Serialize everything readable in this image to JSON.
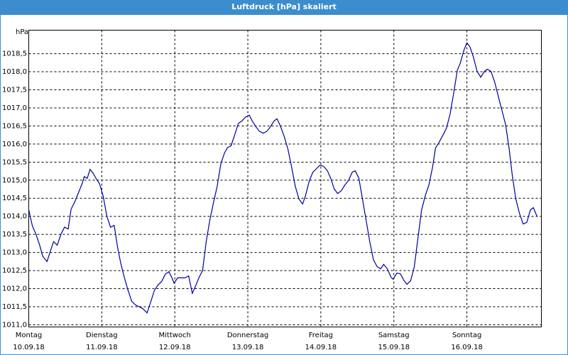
{
  "chart_data": {
    "type": "line",
    "title": "Luftdruck [hPa] skaliert",
    "y_label": "hPa",
    "color": "#00009c",
    "grid": true,
    "xlim": [
      0,
      7.02
    ],
    "ylim": [
      1010.94,
      1019.15
    ],
    "xticks": [
      {
        "value": 0,
        "label": "Montag",
        "date": "10.09.18"
      },
      {
        "value": 1,
        "label": "Dienstag",
        "date": "11.09.18"
      },
      {
        "value": 2,
        "label": "Mittwoch",
        "date": "12.09.18"
      },
      {
        "value": 3,
        "label": "Donnerstag",
        "date": "13.09.18"
      },
      {
        "value": 4,
        "label": "Freitag",
        "date": "14.09.18"
      },
      {
        "value": 5,
        "label": "Samstag",
        "date": "15.09.18"
      },
      {
        "value": 6,
        "label": "Sonntag",
        "date": "16.09.18"
      }
    ],
    "yticks": [
      {
        "value": 1011.0,
        "label": "1011,0"
      },
      {
        "value": 1011.5,
        "label": "1011,5"
      },
      {
        "value": 1012.0,
        "label": "1012,0"
      },
      {
        "value": 1012.5,
        "label": "1012,5"
      },
      {
        "value": 1013.0,
        "label": "1013,0"
      },
      {
        "value": 1013.5,
        "label": "1013,5"
      },
      {
        "value": 1014.0,
        "label": "1014,0"
      },
      {
        "value": 1014.5,
        "label": "1014,5"
      },
      {
        "value": 1015.0,
        "label": "1015,0"
      },
      {
        "value": 1015.5,
        "label": "1015,5"
      },
      {
        "value": 1016.0,
        "label": "1016,0"
      },
      {
        "value": 1016.5,
        "label": "1016,5"
      },
      {
        "value": 1017.0,
        "label": "1017,0"
      },
      {
        "value": 1017.5,
        "label": "1017,5"
      },
      {
        "value": 1018.0,
        "label": "1018,0"
      },
      {
        "value": 1018.5,
        "label": "1018,5"
      }
    ],
    "x": [
      0,
      0.05,
      0.1,
      0.15,
      0.19,
      0.25,
      0.29,
      0.34,
      0.39,
      0.44,
      0.49,
      0.54,
      0.58,
      0.63,
      0.68,
      0.73,
      0.76,
      0.8,
      0.84,
      0.88,
      0.92,
      0.97,
      1.02,
      1.07,
      1.12,
      1.17,
      1.22,
      1.26,
      1.31,
      1.36,
      1.41,
      1.46,
      1.51,
      1.56,
      1.62,
      1.67,
      1.72,
      1.77,
      1.82,
      1.87,
      1.92,
      1.96,
      1.99,
      2.04,
      2.09,
      2.14,
      2.19,
      2.24,
      2.29,
      2.33,
      2.38,
      2.43,
      2.48,
      2.53,
      2.58,
      2.63,
      2.68,
      2.72,
      2.77,
      2.82,
      2.87,
      2.92,
      2.97,
      3.02,
      3.06,
      3.11,
      3.16,
      3.21,
      3.26,
      3.31,
      3.36,
      3.4,
      3.45,
      3.5,
      3.55,
      3.6,
      3.65,
      3.7,
      3.75,
      3.79,
      3.84,
      3.89,
      3.94,
      3.99,
      4.04,
      4.09,
      4.14,
      4.18,
      4.23,
      4.28,
      4.33,
      4.38,
      4.43,
      4.47,
      4.52,
      4.57,
      4.62,
      4.67,
      4.72,
      4.77,
      4.82,
      4.86,
      4.91,
      4.96,
      4.99,
      5.04,
      5.09,
      5.14,
      5.18,
      5.23,
      5.28,
      5.33,
      5.38,
      5.43,
      5.48,
      5.53,
      5.57,
      5.62,
      5.67,
      5.72,
      5.77,
      5.82,
      5.87,
      5.91,
      5.96,
      6.0,
      6.04,
      6.09,
      6.14,
      6.19,
      6.24,
      6.28,
      6.33,
      6.38,
      6.43,
      6.48,
      6.53,
      6.58,
      6.62,
      6.67,
      6.72,
      6.77,
      6.82,
      6.87,
      6.91,
      6.96
    ],
    "values": [
      1014.18,
      1013.73,
      1013.5,
      1013.2,
      1012.9,
      1012.75,
      1013.0,
      1013.3,
      1013.2,
      1013.5,
      1013.7,
      1013.65,
      1014.2,
      1014.4,
      1014.65,
      1014.9,
      1015.1,
      1015.05,
      1015.3,
      1015.2,
      1015.05,
      1014.9,
      1014.55,
      1014.0,
      1013.7,
      1013.75,
      1013.1,
      1012.7,
      1012.3,
      1011.95,
      1011.65,
      1011.55,
      1011.5,
      1011.45,
      1011.33,
      1011.63,
      1011.95,
      1012.1,
      1012.2,
      1012.4,
      1012.47,
      1012.3,
      1012.15,
      1012.3,
      1012.3,
      1012.3,
      1012.35,
      1011.87,
      1012.1,
      1012.3,
      1012.5,
      1013.3,
      1013.9,
      1014.38,
      1014.83,
      1015.45,
      1015.75,
      1015.9,
      1015.95,
      1016.25,
      1016.57,
      1016.64,
      1016.75,
      1016.8,
      1016.64,
      1016.48,
      1016.35,
      1016.3,
      1016.35,
      1016.48,
      1016.64,
      1016.7,
      1016.48,
      1016.2,
      1015.85,
      1015.36,
      1014.83,
      1014.48,
      1014.34,
      1014.57,
      1014.97,
      1015.22,
      1015.32,
      1015.42,
      1015.38,
      1015.26,
      1015.03,
      1014.77,
      1014.63,
      1014.71,
      1014.87,
      1015.0,
      1015.22,
      1015.26,
      1015.06,
      1014.48,
      1013.89,
      1013.3,
      1012.8,
      1012.61,
      1012.55,
      1012.67,
      1012.55,
      1012.32,
      1012.26,
      1012.43,
      1012.41,
      1012.22,
      1012.12,
      1012.22,
      1012.61,
      1013.4,
      1014.18,
      1014.57,
      1014.87,
      1015.36,
      1015.89,
      1016.05,
      1016.24,
      1016.44,
      1016.83,
      1017.42,
      1018.05,
      1018.24,
      1018.6,
      1018.8,
      1018.7,
      1018.4,
      1018.01,
      1017.85,
      1018.01,
      1018.07,
      1018.01,
      1017.72,
      1017.32,
      1016.93,
      1016.54,
      1015.85,
      1015.16,
      1014.48,
      1014.08,
      1013.79,
      1013.83,
      1014.18,
      1014.24,
      1014.0
    ]
  }
}
